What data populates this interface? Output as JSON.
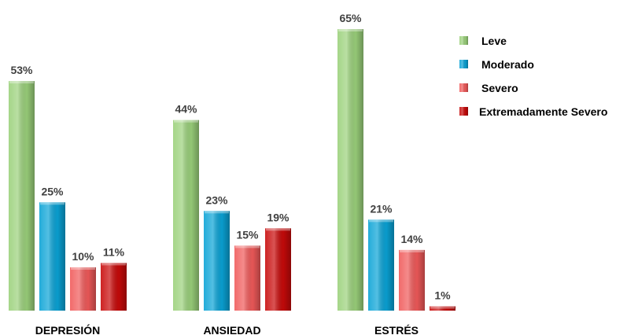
{
  "chart_data": {
    "type": "bar",
    "categories": [
      "DEPRESIÓN",
      "ANSIEDAD",
      "ESTRÉS"
    ],
    "series": [
      {
        "name": "Leve",
        "values": [
          53,
          44,
          65
        ],
        "color": "#9bd17b"
      },
      {
        "name": "Moderado",
        "values": [
          25,
          23,
          21
        ],
        "color": "#0aa3d6"
      },
      {
        "name": "Severo",
        "values": [
          10,
          15,
          14
        ],
        "color": "#f05a5a"
      },
      {
        "name": "Extremadamente Severo",
        "values": [
          11,
          19,
          1
        ],
        "color": "#c80a0a"
      }
    ],
    "value_suffix": "%",
    "ylim": [
      0,
      65
    ],
    "grid": false,
    "legend_position": "top-right"
  }
}
